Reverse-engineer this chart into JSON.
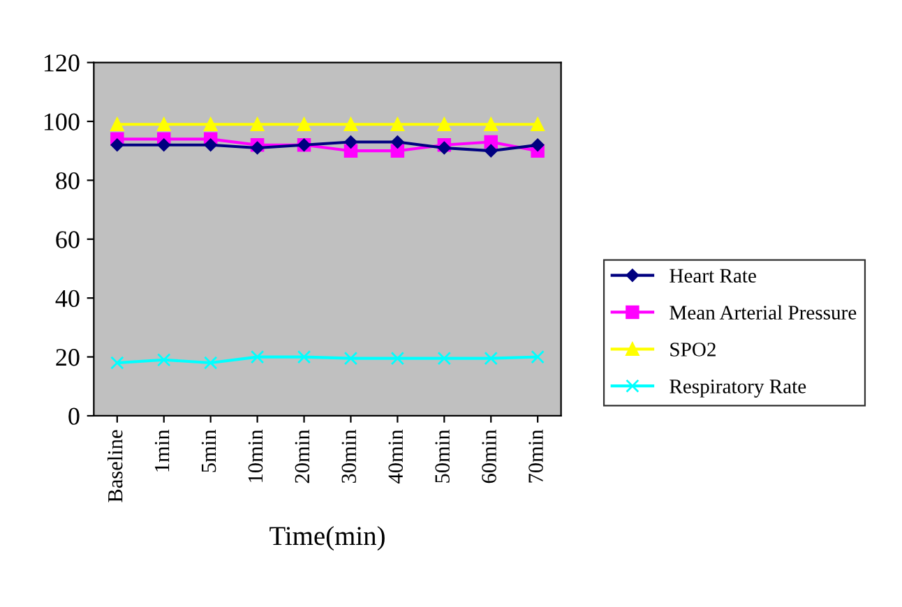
{
  "chart_data": {
    "type": "line",
    "xlabel": "Time(min)",
    "categories": [
      "Baseline",
      "1min",
      "5min",
      "10min",
      "20min",
      "30min",
      "40min",
      "50min",
      "60min",
      "70min"
    ],
    "series": [
      {
        "name": "Heart Rate",
        "color": "#000080",
        "marker": "diamond",
        "values": [
          92,
          92,
          92,
          91,
          92,
          93,
          93,
          91,
          90,
          92
        ]
      },
      {
        "name": "Mean Arterial Pressure",
        "color": "#ff00ff",
        "marker": "square",
        "values": [
          94,
          94,
          94,
          92,
          92,
          90,
          90,
          92,
          93,
          90
        ]
      },
      {
        "name": "SPO2",
        "color": "#ffff00",
        "marker": "triangle",
        "values": [
          99,
          99,
          99,
          99,
          99,
          99,
          99,
          99,
          99,
          99
        ]
      },
      {
        "name": "Respiratory Rate",
        "color": "#00ffff",
        "marker": "cross",
        "values": [
          18,
          19,
          18,
          20,
          20,
          19.5,
          19.5,
          19.5,
          19.5,
          20
        ]
      }
    ],
    "ylim": [
      0,
      120
    ],
    "yticks": [
      0,
      20,
      40,
      60,
      80,
      100,
      120
    ],
    "grid": false,
    "legend": "right"
  }
}
